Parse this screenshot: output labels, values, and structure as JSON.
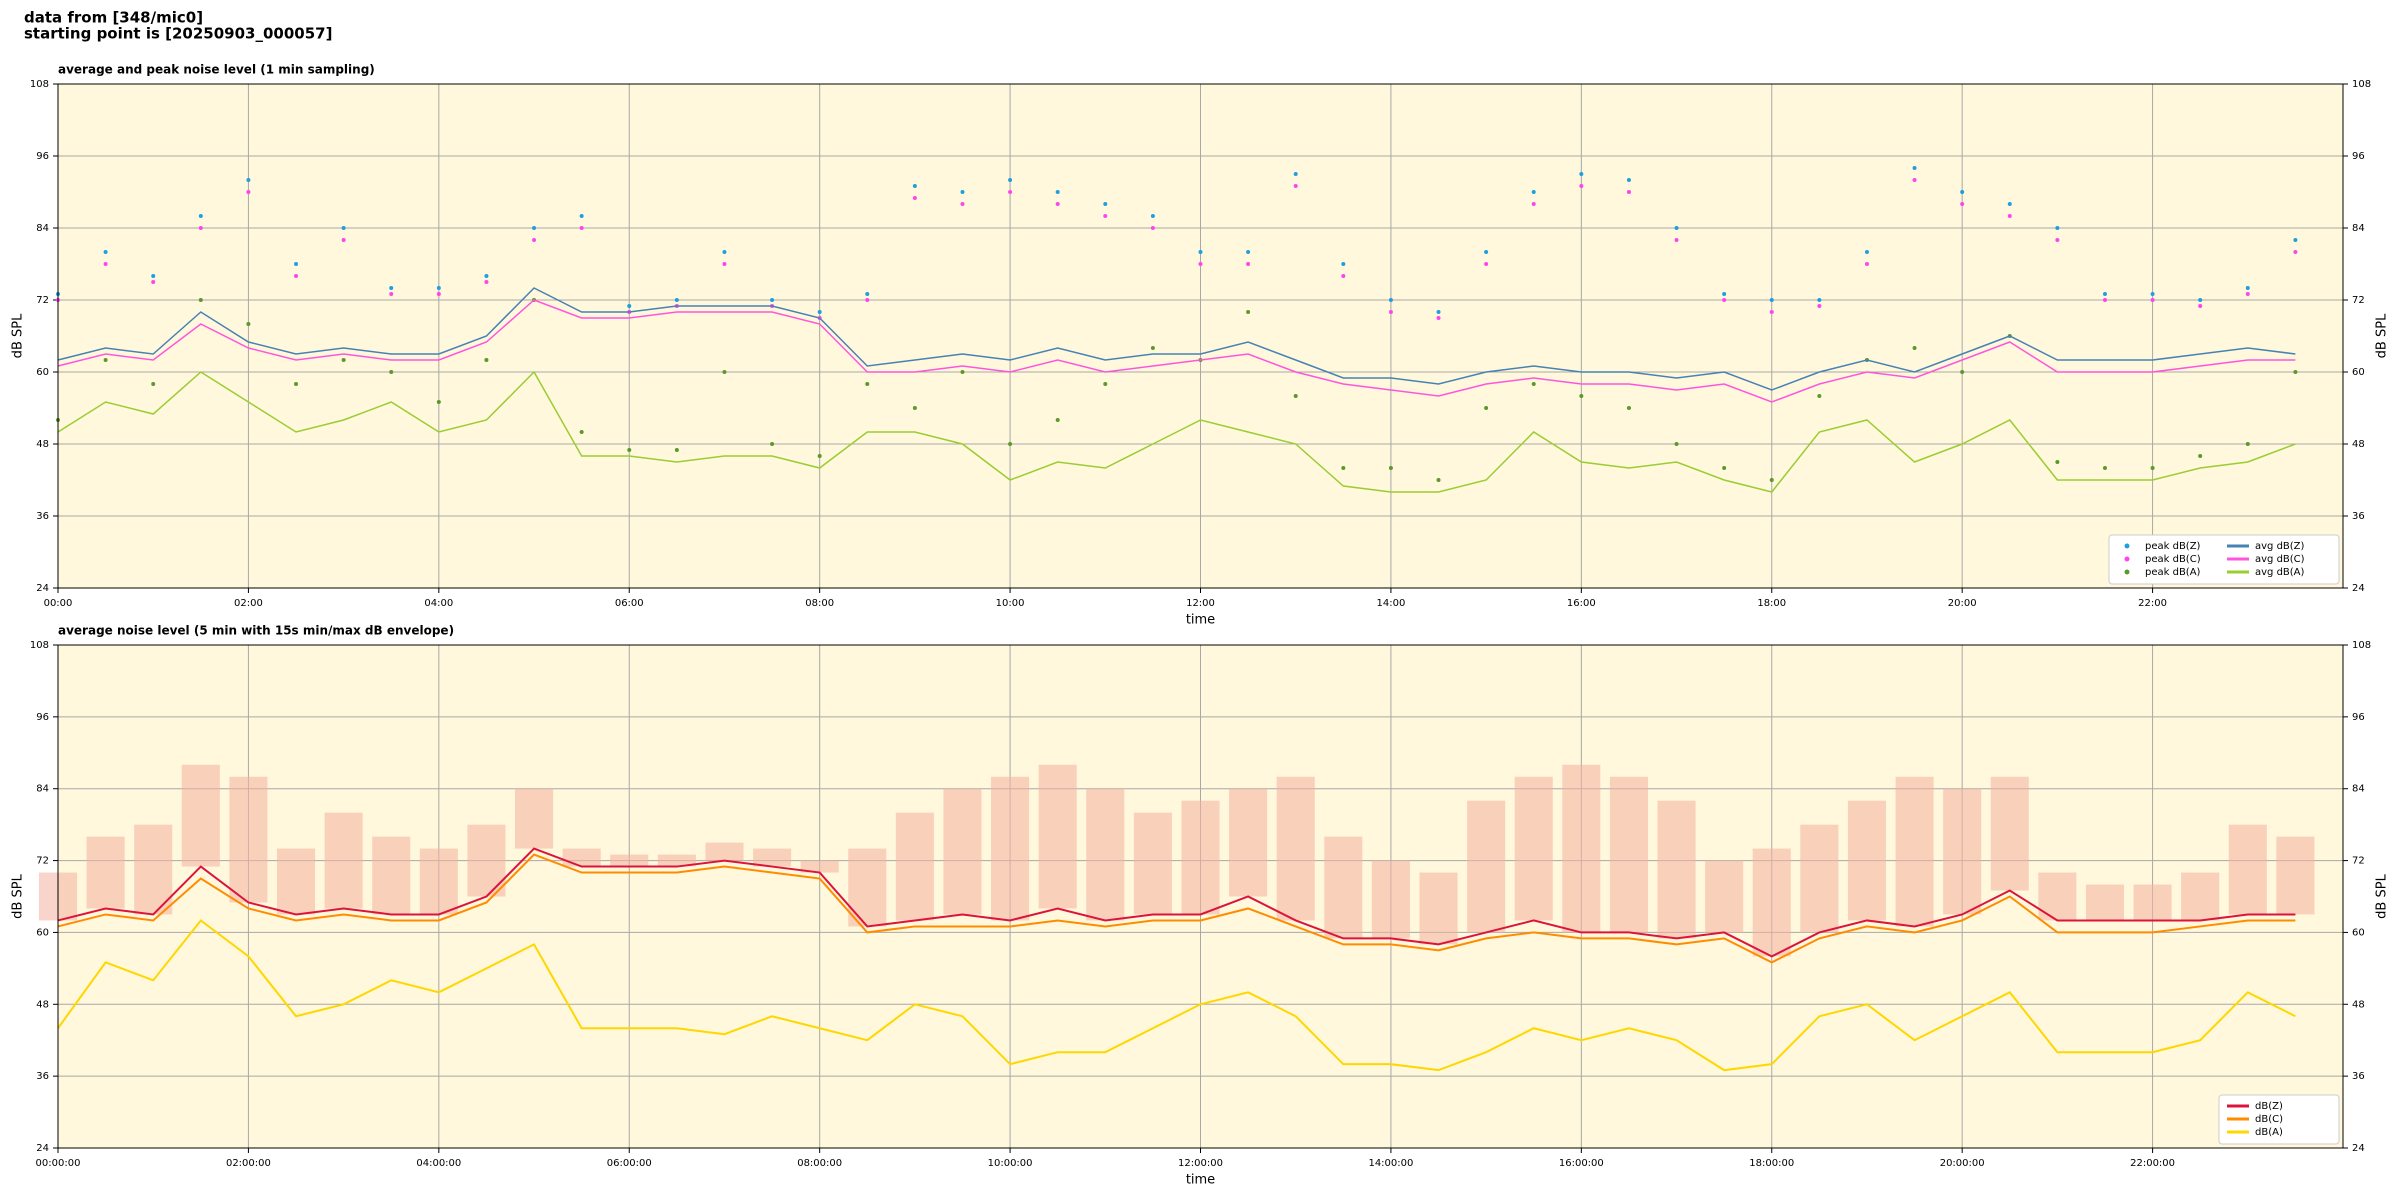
{
  "header": {
    "lines": [
      "data from [348/mic0]",
      "starting point is [20250903_000057]"
    ]
  },
  "chart_data": [
    {
      "type": "line",
      "title": "average and peak noise level (1 min sampling)",
      "xlabel": "time",
      "ylabel": "dB SPL",
      "x": [
        0,
        0.5,
        1,
        1.5,
        2,
        2.5,
        3,
        3.5,
        4,
        4.5,
        5,
        5.5,
        6,
        6.5,
        7,
        7.5,
        8,
        8.5,
        9,
        9.5,
        10,
        10.5,
        11,
        11.5,
        12,
        12.5,
        13,
        13.5,
        14,
        14.5,
        15,
        15.5,
        16,
        16.5,
        17,
        17.5,
        18,
        18.5,
        19,
        19.5,
        20,
        20.5,
        21,
        21.5,
        22,
        22.5,
        23,
        23.5
      ],
      "xlim": [
        0,
        24
      ],
      "xticks": [
        {
          "value": 0,
          "label": "00:00"
        },
        {
          "value": 2,
          "label": "02:00"
        },
        {
          "value": 4,
          "label": "04:00"
        },
        {
          "value": 6,
          "label": "06:00"
        },
        {
          "value": 8,
          "label": "08:00"
        },
        {
          "value": 10,
          "label": "10:00"
        },
        {
          "value": 12,
          "label": "12:00"
        },
        {
          "value": 14,
          "label": "14:00"
        },
        {
          "value": 16,
          "label": "16:00"
        },
        {
          "value": 18,
          "label": "18:00"
        },
        {
          "value": 20,
          "label": "20:00"
        },
        {
          "value": 22,
          "label": "22:00"
        }
      ],
      "ylim": [
        24,
        108
      ],
      "yticks": [
        24,
        36,
        48,
        60,
        72,
        84,
        96,
        108
      ],
      "grid": true,
      "legend": "lower right",
      "legend_columns": 2,
      "series": [
        {
          "name": "peak dB(Z)",
          "kind": "scatter",
          "color": "#1f9fdf",
          "values": [
            73,
            80,
            76,
            86,
            92,
            78,
            84,
            74,
            74,
            76,
            84,
            86,
            71,
            72,
            80,
            72,
            70,
            73,
            91,
            90,
            92,
            90,
            88,
            86,
            80,
            80,
            93,
            78,
            72,
            70,
            80,
            90,
            93,
            92,
            84,
            73,
            72,
            72,
            80,
            94,
            90,
            88,
            84,
            73,
            73,
            72,
            74,
            82
          ]
        },
        {
          "name": "peak dB(C)",
          "kind": "scatter",
          "color": "#ff44ee",
          "values": [
            72,
            78,
            75,
            84,
            90,
            76,
            82,
            73,
            73,
            75,
            82,
            84,
            70,
            71,
            78,
            71,
            69,
            72,
            89,
            88,
            90,
            88,
            86,
            84,
            78,
            78,
            91,
            76,
            70,
            69,
            78,
            88,
            91,
            90,
            82,
            72,
            70,
            71,
            78,
            92,
            88,
            86,
            82,
            72,
            72,
            71,
            73,
            80
          ]
        },
        {
          "name": "peak dB(A)",
          "kind": "scatter",
          "color": "#5a9a2a",
          "values": [
            52,
            62,
            58,
            72,
            68,
            58,
            62,
            60,
            55,
            62,
            72,
            50,
            47,
            47,
            60,
            48,
            46,
            58,
            54,
            60,
            48,
            52,
            58,
            64,
            62,
            70,
            56,
            44,
            44,
            42,
            54,
            58,
            56,
            54,
            48,
            44,
            42,
            56,
            62,
            64,
            60,
            66,
            45,
            44,
            44,
            46,
            48,
            60
          ]
        },
        {
          "name": "avg dB(Z)",
          "kind": "line",
          "color": "#4682b4",
          "values": [
            62,
            64,
            63,
            70,
            65,
            63,
            64,
            63,
            63,
            66,
            74,
            70,
            70,
            71,
            71,
            71,
            69,
            61,
            62,
            63,
            62,
            64,
            62,
            63,
            63,
            65,
            62,
            59,
            59,
            58,
            60,
            61,
            60,
            60,
            59,
            60,
            57,
            60,
            62,
            60,
            63,
            66,
            62,
            62,
            62,
            63,
            64,
            63
          ]
        },
        {
          "name": "avg dB(C)",
          "kind": "line",
          "color": "#ff55dd",
          "values": [
            61,
            63,
            62,
            68,
            64,
            62,
            63,
            62,
            62,
            65,
            72,
            69,
            69,
            70,
            70,
            70,
            68,
            60,
            60,
            61,
            60,
            62,
            60,
            61,
            62,
            63,
            60,
            58,
            57,
            56,
            58,
            59,
            58,
            58,
            57,
            58,
            55,
            58,
            60,
            59,
            62,
            65,
            60,
            60,
            60,
            61,
            62,
            62
          ]
        },
        {
          "name": "avg dB(A)",
          "kind": "line",
          "color": "#9acd32",
          "values": [
            50,
            55,
            53,
            60,
            55,
            50,
            52,
            55,
            50,
            52,
            60,
            46,
            46,
            45,
            46,
            46,
            44,
            50,
            50,
            48,
            42,
            45,
            44,
            48,
            52,
            50,
            48,
            41,
            40,
            40,
            42,
            50,
            45,
            44,
            45,
            42,
            40,
            50,
            52,
            45,
            48,
            52,
            42,
            42,
            42,
            44,
            45,
            48
          ]
        }
      ]
    },
    {
      "type": "line",
      "title": "average noise level (5 min with 15s min/max dB envelope)",
      "xlabel": "time",
      "ylabel": "dB SPL",
      "x": [
        0,
        0.5,
        1,
        1.5,
        2,
        2.5,
        3,
        3.5,
        4,
        4.5,
        5,
        5.5,
        6,
        6.5,
        7,
        7.5,
        8,
        8.5,
        9,
        9.5,
        10,
        10.5,
        11,
        11.5,
        12,
        12.5,
        13,
        13.5,
        14,
        14.5,
        15,
        15.5,
        16,
        16.5,
        17,
        17.5,
        18,
        18.5,
        19,
        19.5,
        20,
        20.5,
        21,
        21.5,
        22,
        22.5,
        23,
        23.5
      ],
      "xlim": [
        0,
        24
      ],
      "xticks": [
        {
          "value": 0,
          "label": "00:00:00"
        },
        {
          "value": 2,
          "label": "02:00:00"
        },
        {
          "value": 4,
          "label": "04:00:00"
        },
        {
          "value": 6,
          "label": "06:00:00"
        },
        {
          "value": 8,
          "label": "08:00:00"
        },
        {
          "value": 10,
          "label": "10:00:00"
        },
        {
          "value": 12,
          "label": "12:00:00"
        },
        {
          "value": 14,
          "label": "14:00:00"
        },
        {
          "value": 16,
          "label": "16:00:00"
        },
        {
          "value": 18,
          "label": "18:00:00"
        },
        {
          "value": 20,
          "label": "20:00:00"
        },
        {
          "value": 22,
          "label": "22:00:00"
        }
      ],
      "ylim": [
        24,
        108
      ],
      "yticks": [
        24,
        36,
        48,
        60,
        72,
        84,
        96,
        108
      ],
      "grid": true,
      "legend": "lower right",
      "legend_columns": 1,
      "envelope_color": "#f4b0a0",
      "envelope_max": [
        70,
        76,
        78,
        88,
        86,
        74,
        80,
        76,
        74,
        78,
        84,
        74,
        73,
        73,
        75,
        74,
        72,
        74,
        80,
        84,
        86,
        88,
        84,
        80,
        82,
        84,
        86,
        76,
        72,
        70,
        82,
        86,
        88,
        86,
        82,
        72,
        74,
        78,
        82,
        86,
        84,
        86,
        70,
        68,
        68,
        70,
        78,
        76
      ],
      "series": [
        {
          "name": "dB(Z)",
          "kind": "line",
          "color": "#dc143c",
          "values": [
            62,
            64,
            63,
            71,
            65,
            63,
            64,
            63,
            63,
            66,
            74,
            71,
            71,
            71,
            72,
            71,
            70,
            61,
            62,
            63,
            62,
            64,
            62,
            63,
            63,
            66,
            62,
            59,
            59,
            58,
            60,
            62,
            60,
            60,
            59,
            60,
            56,
            60,
            62,
            61,
            63,
            67,
            62,
            62,
            62,
            62,
            63,
            63
          ]
        },
        {
          "name": "dB(C)",
          "kind": "line",
          "color": "#ff8c00",
          "values": [
            61,
            63,
            62,
            69,
            64,
            62,
            63,
            62,
            62,
            65,
            73,
            70,
            70,
            70,
            71,
            70,
            69,
            60,
            61,
            61,
            61,
            62,
            61,
            62,
            62,
            64,
            61,
            58,
            58,
            57,
            59,
            60,
            59,
            59,
            58,
            59,
            55,
            59,
            61,
            60,
            62,
            66,
            60,
            60,
            60,
            61,
            62,
            62
          ]
        },
        {
          "name": "dB(A)",
          "kind": "line",
          "color": "#ffd700",
          "values": [
            44,
            55,
            52,
            62,
            56,
            46,
            48,
            52,
            50,
            54,
            58,
            44,
            44,
            44,
            43,
            46,
            44,
            42,
            48,
            46,
            38,
            40,
            40,
            44,
            48,
            50,
            46,
            38,
            38,
            37,
            40,
            44,
            42,
            44,
            42,
            37,
            38,
            46,
            48,
            42,
            46,
            50,
            40,
            40,
            40,
            42,
            50,
            46
          ]
        }
      ]
    }
  ]
}
